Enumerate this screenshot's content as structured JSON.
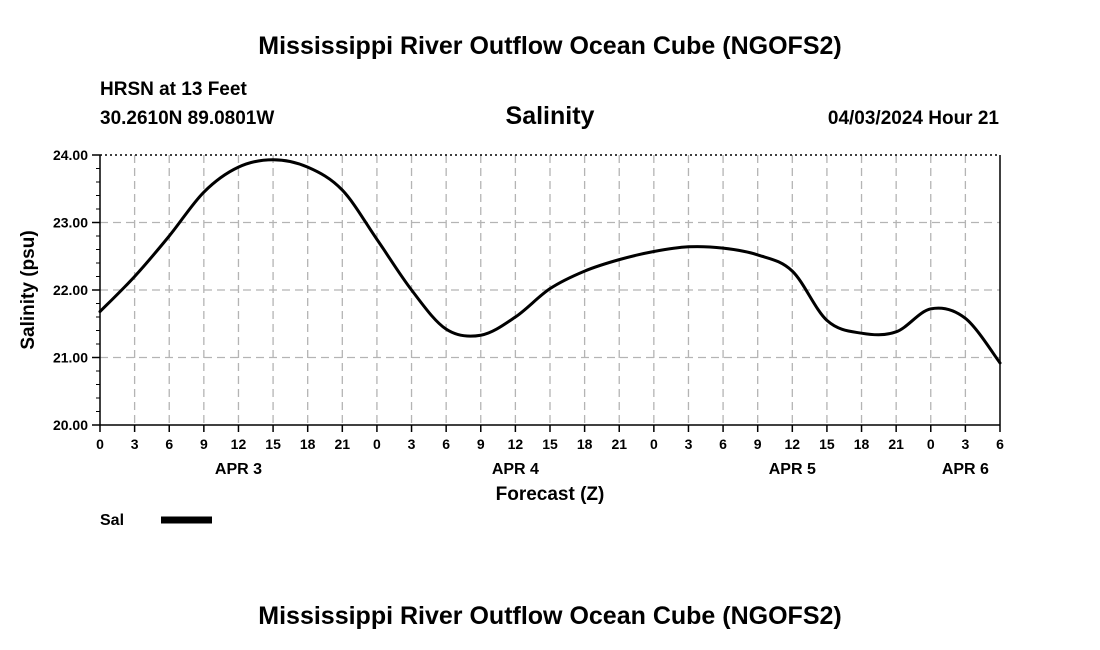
{
  "page": {
    "title_top": "Mississippi River Outflow Ocean Cube (NGOFS2)",
    "title_bottom": "Mississippi River Outflow Ocean Cube (NGOFS2)",
    "station": "HRSN at 13 Feet",
    "coords": "30.2610N  89.0801W",
    "timestamp": "04/03/2024 Hour 21"
  },
  "chart_data": {
    "type": "line",
    "title": "Salinity",
    "xlabel": "Forecast (Z)",
    "ylabel": "Salinity (psu)",
    "ylim": [
      20.0,
      24.0
    ],
    "yticks": [
      "20.00",
      "21.00",
      "22.00",
      "23.00",
      "24.00"
    ],
    "xlim_hours": [
      0,
      78
    ],
    "xtick_labels": [
      "0",
      "3",
      "6",
      "9",
      "12",
      "15",
      "18",
      "21",
      "0",
      "3",
      "6",
      "9",
      "12",
      "15",
      "18",
      "21",
      "0",
      "3",
      "6",
      "9",
      "12",
      "15",
      "18",
      "21",
      "0",
      "3",
      "6"
    ],
    "day_labels": [
      {
        "label": "APR 3",
        "hour": 12
      },
      {
        "label": "APR 4",
        "hour": 36
      },
      {
        "label": "APR 5",
        "hour": 60
      },
      {
        "label": "APR 6",
        "hour": 75
      }
    ],
    "grid": true,
    "legend": {
      "position": "bottom-left",
      "label": "Sal"
    },
    "series": [
      {
        "name": "Sal",
        "x": [
          0,
          3,
          6,
          9,
          12,
          15,
          18,
          21,
          24,
          27,
          30,
          33,
          36,
          39,
          42,
          45,
          48,
          51,
          54,
          57,
          60,
          63,
          66,
          69,
          72,
          75,
          78
        ],
        "y": [
          21.68,
          22.2,
          22.8,
          23.45,
          23.82,
          23.93,
          23.82,
          23.48,
          22.75,
          22.0,
          21.42,
          21.33,
          21.6,
          22.02,
          22.28,
          22.45,
          22.57,
          22.64,
          22.62,
          22.52,
          22.28,
          21.55,
          21.36,
          21.38,
          21.72,
          21.58,
          20.92
        ]
      }
    ]
  }
}
